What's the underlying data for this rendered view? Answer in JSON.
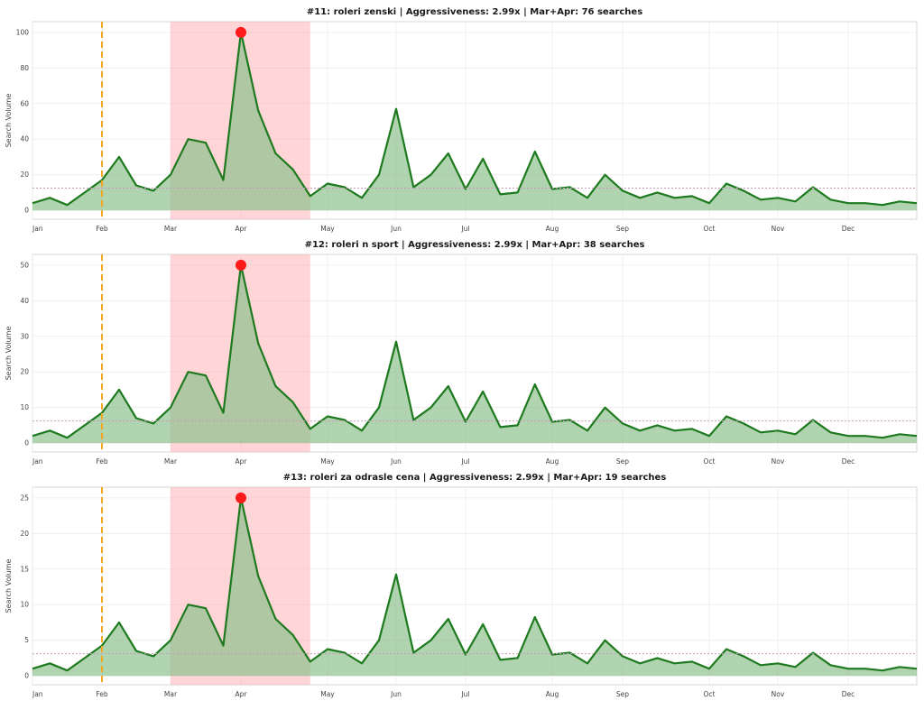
{
  "chart_data": [
    {
      "type": "area",
      "title": "#11: roleri zenski | Aggressiveness: 2.99x | Mar+Apr: 76 searches",
      "ylabel": "Search Volume",
      "xlabel": "",
      "ylim": [
        -5,
        106
      ],
      "yticks": [
        0,
        20,
        40,
        60,
        80,
        100
      ],
      "x_ticks": [
        "Jan",
        "Feb",
        "Mar",
        "Apr",
        "May",
        "Jun",
        "Jul",
        "Aug",
        "Sep",
        "Oct",
        "Nov",
        "Dec"
      ],
      "values": [
        4,
        7,
        3,
        10,
        17,
        30,
        14,
        11,
        20,
        40,
        38,
        17,
        100,
        56,
        32,
        23,
        8,
        15,
        13,
        7,
        20,
        57,
        13,
        20,
        32,
        12,
        29,
        9,
        10,
        33,
        12,
        13,
        7,
        20,
        11,
        7,
        10,
        7,
        8,
        4,
        15,
        11,
        6,
        7,
        5,
        13,
        6,
        4,
        4,
        3,
        5,
        4
      ],
      "peak_value": 100,
      "mean_line": 12.5,
      "highlight_region": "Mar–Apr",
      "marker_line": "Feb",
      "grid": true
    },
    {
      "type": "area",
      "title": "#12: roleri n sport | Aggressiveness: 2.99x | Mar+Apr: 38 searches",
      "ylabel": "Search Volume",
      "xlabel": "",
      "ylim": [
        -2.5,
        53
      ],
      "yticks": [
        0,
        10,
        20,
        30,
        40,
        50
      ],
      "x_ticks": [
        "Jan",
        "Feb",
        "Mar",
        "Apr",
        "May",
        "Jun",
        "Jul",
        "Aug",
        "Sep",
        "Oct",
        "Nov",
        "Dec"
      ],
      "values": [
        2,
        3.5,
        1.5,
        5,
        8.5,
        15,
        7,
        5.5,
        10,
        20,
        19,
        8.5,
        50,
        28,
        16,
        11.5,
        4,
        7.5,
        6.5,
        3.5,
        10,
        28.5,
        6.5,
        10,
        16,
        6,
        14.5,
        4.5,
        5,
        16.5,
        6,
        6.5,
        3.5,
        10,
        5.5,
        3.5,
        5,
        3.5,
        4,
        2,
        7.5,
        5.5,
        3,
        3.5,
        2.5,
        6.5,
        3,
        2,
        2,
        1.5,
        2.5,
        2
      ],
      "peak_value": 50,
      "mean_line": 6.2,
      "highlight_region": "Mar–Apr",
      "marker_line": "Feb",
      "grid": true
    },
    {
      "type": "area",
      "title": "#13: roleri za odrasle cena | Aggressiveness: 2.99x | Mar+Apr: 19 searches",
      "ylabel": "Search Volume",
      "xlabel": "",
      "ylim": [
        -1.25,
        26.5
      ],
      "yticks": [
        0,
        5,
        10,
        15,
        20,
        25
      ],
      "x_ticks": [
        "Jan",
        "Feb",
        "Mar",
        "Apr",
        "May",
        "Jun",
        "Jul",
        "Aug",
        "Sep",
        "Oct",
        "Nov",
        "Dec"
      ],
      "values": [
        1,
        1.75,
        0.75,
        2.5,
        4.25,
        7.5,
        3.5,
        2.75,
        5,
        10,
        9.5,
        4.25,
        25,
        14,
        8,
        5.75,
        2,
        3.75,
        3.25,
        1.75,
        5,
        14.25,
        3.25,
        5,
        8,
        3,
        7.25,
        2.25,
        2.5,
        8.25,
        3,
        3.25,
        1.75,
        5,
        2.75,
        1.75,
        2.5,
        1.75,
        2,
        1,
        3.75,
        2.75,
        1.5,
        1.75,
        1.25,
        3.25,
        1.5,
        1,
        1,
        0.75,
        1.25,
        1
      ],
      "peak_value": 25,
      "mean_line": 3.1,
      "highlight_region": "Mar–Apr",
      "marker_line": "Feb",
      "grid": true
    }
  ],
  "colors": {
    "line": "#1e7a1e",
    "fill": "#8fc08f",
    "highlight": "#ff9aa2",
    "marker_line": "#f5a623",
    "peak": "#ff1a1a",
    "mean_line": "#c79bbb",
    "grid": "#ececec",
    "frame": "#cccccc"
  }
}
